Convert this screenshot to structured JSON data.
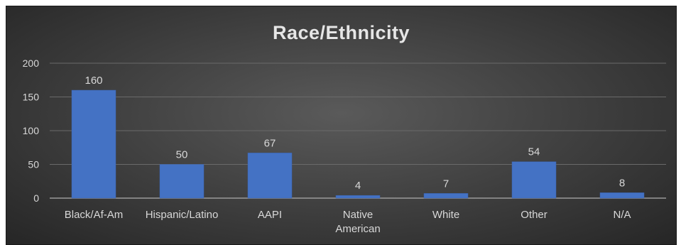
{
  "chart_data": {
    "type": "bar",
    "title": "Race/Ethnicity",
    "categories": [
      "Black/Af-Am",
      "Hispanic/Latino",
      "AAPI",
      "Native American",
      "White",
      "Other",
      "N/A"
    ],
    "category_lines": [
      [
        "Black/Af-Am"
      ],
      [
        "Hispanic/Latino"
      ],
      [
        "AAPI"
      ],
      [
        "Native",
        "American"
      ],
      [
        "White"
      ],
      [
        "Other"
      ],
      [
        "N/A"
      ]
    ],
    "values": [
      160,
      50,
      67,
      4,
      7,
      54,
      8
    ],
    "ylim": [
      0,
      200
    ],
    "yticks": [
      0,
      50,
      100,
      150,
      200
    ],
    "grid": true,
    "data_labels": true,
    "bar_color": "#4472c4"
  }
}
